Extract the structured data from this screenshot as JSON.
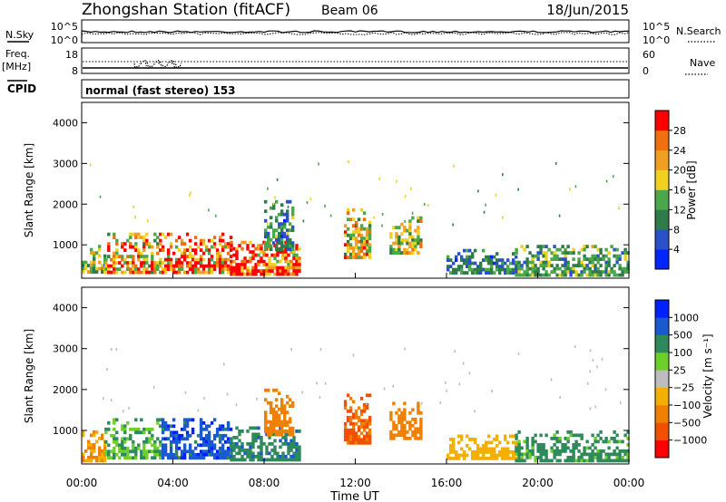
{
  "header": {
    "station": "Zhongshan Station (fitACF)",
    "beam": "Beam 06",
    "date": "18/Jun/2015"
  },
  "noise_panel": {
    "left_label": "N.Sky",
    "right_label": "N.Search",
    "ticks_left": [
      "10^5",
      "10^0"
    ],
    "ticks_right": [
      "10^5",
      "10^0"
    ]
  },
  "freq_panel": {
    "left_label_1": "Freq.",
    "left_label_2": "[MHz]",
    "right_label": "Nave",
    "ticks_left": [
      "18",
      "8"
    ],
    "ticks_right": [
      "60",
      "0"
    ]
  },
  "cpid": {
    "label": "CPID",
    "value": "normal (fast stereo) 153"
  },
  "colors": {
    "power": [
      "#0026ff",
      "#2a52c8",
      "#2e7d48",
      "#4aa84a",
      "#f0d020",
      "#f0a020",
      "#f07010",
      "#ff0000"
    ],
    "velocity": [
      "#ff0000",
      "#f05000",
      "#f08000",
      "#f4b000",
      "#bdbdbd",
      "#6ccf2a",
      "#2e8a5a",
      "#1a5ad0",
      "#0020ff"
    ]
  },
  "chart_data": [
    {
      "type": "heatmap",
      "name": "power",
      "ylabel": "Slant Range [km]",
      "yticks": [
        "1000",
        "2000",
        "3000",
        "4000"
      ],
      "ylim": [
        180,
        4500
      ],
      "xlim_hours": [
        0,
        24
      ],
      "colorbar": {
        "label": "Power [dB]",
        "ticks": [
          "4",
          "8",
          "12",
          "16",
          "20",
          "24",
          "28"
        ],
        "range": [
          0,
          30
        ]
      },
      "echo_regions": [
        {
          "t0": 0.0,
          "t1": 1.0,
          "r0": 300,
          "r1": 1000,
          "value": 16
        },
        {
          "t0": 1.0,
          "t1": 3.5,
          "r0": 300,
          "r1": 1300,
          "value": 22
        },
        {
          "t0": 3.5,
          "t1": 6.5,
          "r0": 300,
          "r1": 1300,
          "value": 26
        },
        {
          "t0": 6.5,
          "t1": 9.5,
          "r0": 300,
          "r1": 1100,
          "value": 28
        },
        {
          "t0": 8.0,
          "t1": 9.2,
          "r0": 900,
          "r1": 2100,
          "value": 10
        },
        {
          "t0": 11.5,
          "t1": 12.6,
          "r0": 700,
          "r1": 1900,
          "value": 20
        },
        {
          "t0": 13.5,
          "t1": 14.9,
          "r0": 800,
          "r1": 1700,
          "value": 18
        },
        {
          "t0": 16.0,
          "t1": 19.0,
          "r0": 300,
          "r1": 900,
          "value": 9
        },
        {
          "t0": 19.0,
          "t1": 24.0,
          "r0": 250,
          "r1": 1000,
          "value": 12
        }
      ]
    },
    {
      "type": "heatmap",
      "name": "velocity",
      "ylabel": "Slant Range [km]",
      "yticks": [
        "1000",
        "2000",
        "3000",
        "4000"
      ],
      "ylim": [
        180,
        4500
      ],
      "xlim_hours": [
        0,
        24
      ],
      "xlabel": "Time UT",
      "xticks": [
        "00:00",
        "04:00",
        "08:00",
        "12:00",
        "16:00",
        "20:00",
        "00:00"
      ],
      "colorbar": {
        "label": "Velocity [m s⁻¹]",
        "ticks": [
          "−1000",
          "−500",
          "−100",
          "−25",
          "25",
          "100",
          "500",
          "1000"
        ]
      },
      "echo_regions": [
        {
          "t0": 0.0,
          "t1": 1.0,
          "r0": 300,
          "r1": 1000,
          "value": -100
        },
        {
          "t0": 1.0,
          "t1": 3.5,
          "r0": 300,
          "r1": 1300,
          "value": 100
        },
        {
          "t0": 3.5,
          "t1": 6.5,
          "r0": 300,
          "r1": 1300,
          "value": 800
        },
        {
          "t0": 6.5,
          "t1": 9.5,
          "r0": 300,
          "r1": 1100,
          "value": 400
        },
        {
          "t0": 8.0,
          "t1": 9.2,
          "r0": 900,
          "r1": 2100,
          "value": -300
        },
        {
          "t0": 11.5,
          "t1": 12.6,
          "r0": 700,
          "r1": 1900,
          "value": -600
        },
        {
          "t0": 13.5,
          "t1": 14.9,
          "r0": 800,
          "r1": 1700,
          "value": -200
        },
        {
          "t0": 16.0,
          "t1": 19.0,
          "r0": 300,
          "r1": 900,
          "value": -50
        },
        {
          "t0": 19.0,
          "t1": 24.0,
          "r0": 250,
          "r1": 1000,
          "value": 150
        }
      ]
    }
  ]
}
